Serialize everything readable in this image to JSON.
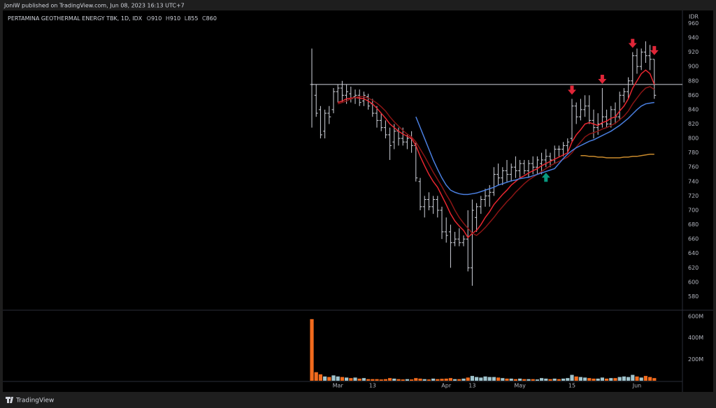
{
  "published": "JoniW published on TradingView.com, Jun 08, 2023 16:13 UTC+7",
  "brand": "TradingView",
  "chart_data": {
    "type": "ohlc",
    "title": "PERTAMINA GEOTHERMAL ENERGY TBK, 1D, IDX",
    "ohlc_labels": [
      "O",
      "H",
      "L",
      "C"
    ],
    "currency": "IDR",
    "categories": [
      null,
      null,
      null,
      null,
      null,
      null,
      "Mar",
      null,
      null,
      null,
      null,
      null,
      null,
      null,
      "13",
      null,
      null,
      null,
      null,
      null,
      null,
      null,
      null,
      null,
      null,
      null,
      null,
      null,
      null,
      null,
      null,
      "Apr",
      null,
      null,
      null,
      null,
      null,
      "13",
      null,
      null,
      null,
      null,
      null,
      null,
      null,
      null,
      null,
      null,
      "May",
      null,
      null,
      null,
      null,
      null,
      null,
      null,
      null,
      null,
      null,
      null,
      "15",
      null,
      null,
      null,
      null,
      null,
      null,
      null,
      null,
      null,
      null,
      null,
      null,
      null,
      null,
      "Jun",
      null,
      null,
      null,
      null
    ],
    "open": [
      875,
      860,
      840,
      810,
      835,
      840,
      865,
      870,
      860,
      862,
      858,
      860,
      852,
      858,
      848,
      835,
      825,
      815,
      805,
      795,
      810,
      800,
      795,
      800,
      790,
      740,
      705,
      715,
      705,
      715,
      700,
      670,
      670,
      655,
      660,
      655,
      660,
      620,
      690,
      705,
      715,
      720,
      725,
      750,
      745,
      755,
      750,
      760,
      755,
      765,
      755,
      765,
      760,
      765,
      770,
      775,
      770,
      785,
      785,
      790,
      800,
      845,
      830,
      840,
      845,
      825,
      815,
      820,
      830,
      820,
      840,
      830,
      860,
      865,
      880,
      915,
      900,
      920,
      915,
      910
    ],
    "high": [
      925,
      875,
      845,
      840,
      845,
      870,
      875,
      880,
      875,
      872,
      868,
      868,
      865,
      862,
      855,
      845,
      835,
      825,
      815,
      820,
      815,
      815,
      805,
      810,
      795,
      745,
      720,
      725,
      720,
      720,
      705,
      690,
      680,
      670,
      675,
      665,
      700,
      715,
      710,
      720,
      730,
      735,
      760,
      765,
      760,
      770,
      765,
      775,
      770,
      770,
      770,
      775,
      775,
      780,
      785,
      780,
      790,
      790,
      795,
      800,
      855,
      850,
      855,
      860,
      860,
      840,
      835,
      870,
      840,
      845,
      850,
      865,
      870,
      885,
      920,
      925,
      925,
      935,
      930,
      910
    ],
    "low": [
      815,
      830,
      800,
      800,
      820,
      835,
      850,
      850,
      848,
      850,
      848,
      845,
      845,
      840,
      830,
      815,
      810,
      800,
      770,
      785,
      790,
      790,
      785,
      780,
      740,
      700,
      690,
      700,
      695,
      690,
      660,
      655,
      620,
      650,
      650,
      650,
      615,
      595,
      670,
      695,
      705,
      705,
      720,
      735,
      735,
      740,
      740,
      745,
      745,
      750,
      745,
      750,
      750,
      750,
      760,
      760,
      765,
      775,
      775,
      780,
      795,
      820,
      825,
      830,
      820,
      800,
      805,
      815,
      815,
      815,
      820,
      825,
      850,
      855,
      875,
      890,
      895,
      905,
      895,
      855
    ],
    "close": [
      875,
      835,
      805,
      835,
      830,
      865,
      870,
      860,
      865,
      855,
      860,
      850,
      860,
      845,
      835,
      825,
      815,
      805,
      790,
      810,
      800,
      795,
      800,
      790,
      745,
      705,
      715,
      705,
      715,
      700,
      670,
      665,
      655,
      660,
      655,
      660,
      620,
      700,
      705,
      715,
      720,
      725,
      750,
      745,
      755,
      750,
      760,
      755,
      765,
      755,
      765,
      760,
      770,
      770,
      775,
      770,
      785,
      785,
      790,
      795,
      845,
      830,
      840,
      845,
      825,
      815,
      820,
      830,
      820,
      840,
      830,
      860,
      865,
      880,
      915,
      900,
      920,
      915,
      910,
      860
    ],
    "volume": [
      575,
      80,
      60,
      40,
      35,
      50,
      40,
      35,
      30,
      25,
      30,
      20,
      25,
      15,
      15,
      15,
      12,
      15,
      25,
      20,
      15,
      12,
      15,
      12,
      25,
      20,
      15,
      12,
      20,
      15,
      18,
      20,
      25,
      15,
      15,
      20,
      30,
      45,
      35,
      30,
      40,
      35,
      35,
      30,
      25,
      20,
      20,
      15,
      20,
      15,
      15,
      15,
      12,
      25,
      20,
      15,
      20,
      15,
      20,
      25,
      55,
      40,
      35,
      30,
      25,
      20,
      20,
      30,
      20,
      25,
      25,
      35,
      40,
      35,
      55,
      40,
      30,
      45,
      35,
      25
    ],
    "indicators": [
      {
        "color": "#e8262f",
        "values": [
          null,
          null,
          null,
          null,
          null,
          null,
          850,
          852,
          855,
          856,
          857,
          856,
          855,
          852,
          848,
          842,
          835,
          828,
          820,
          815,
          810,
          806,
          803,
          800,
          790,
          775,
          762,
          750,
          740,
          732,
          720,
          708,
          695,
          685,
          678,
          672,
          662,
          668,
          672,
          680,
          690,
          698,
          708,
          715,
          722,
          728,
          735,
          740,
          745,
          748,
          752,
          755,
          758,
          762,
          765,
          768,
          771,
          774,
          777,
          780,
          795,
          805,
          812,
          820,
          822,
          820,
          818,
          822,
          824,
          828,
          830,
          838,
          845,
          855,
          870,
          880,
          890,
          895,
          890,
          875
        ]
      },
      {
        "color": "#8a1515",
        "values": [
          null,
          null,
          null,
          null,
          null,
          null,
          848,
          850,
          852,
          855,
          857,
          858,
          858,
          856,
          853,
          849,
          844,
          838,
          830,
          823,
          817,
          811,
          806,
          802,
          795,
          785,
          775,
          764,
          753,
          743,
          733,
          722,
          712,
          700,
          690,
          682,
          675,
          668,
          665,
          670,
          676,
          683,
          690,
          698,
          705,
          712,
          718,
          725,
          731,
          737,
          742,
          746,
          750,
          754,
          758,
          762,
          765,
          768,
          771,
          774,
          780,
          788,
          795,
          802,
          806,
          808,
          810,
          813,
          815,
          818,
          821,
          826,
          831,
          838,
          848,
          856,
          864,
          870,
          872,
          868
        ]
      },
      {
        "color": "#4a7fe0",
        "values": [
          null,
          null,
          null,
          null,
          null,
          null,
          null,
          null,
          null,
          null,
          null,
          null,
          null,
          null,
          null,
          null,
          null,
          null,
          null,
          null,
          null,
          null,
          null,
          null,
          830,
          815,
          800,
          785,
          770,
          757,
          745,
          735,
          728,
          725,
          723,
          722,
          722,
          723,
          724,
          726,
          728,
          730,
          732,
          735,
          737,
          739,
          741,
          742,
          744,
          745,
          746,
          748,
          750,
          752,
          754,
          756,
          758,
          765,
          772,
          778,
          783,
          787,
          790,
          793,
          796,
          798,
          801,
          804,
          807,
          810,
          814,
          818,
          823,
          828,
          834,
          840,
          845,
          848,
          849,
          850
        ]
      },
      {
        "color": "#c98a2c",
        "values": [
          null,
          null,
          null,
          null,
          null,
          null,
          null,
          null,
          null,
          null,
          null,
          null,
          null,
          null,
          null,
          null,
          null,
          null,
          null,
          null,
          null,
          null,
          null,
          null,
          null,
          null,
          null,
          null,
          null,
          null,
          null,
          null,
          null,
          null,
          null,
          null,
          null,
          null,
          null,
          null,
          null,
          null,
          null,
          null,
          null,
          null,
          null,
          null,
          null,
          null,
          null,
          null,
          null,
          null,
          null,
          null,
          null,
          null,
          null,
          null,
          null,
          null,
          776,
          776,
          775,
          775,
          774,
          774,
          773,
          773,
          773,
          773,
          774,
          774,
          775,
          775,
          776,
          777,
          778,
          778
        ]
      }
    ],
    "signals": [
      null,
      null,
      null,
      null,
      null,
      null,
      null,
      null,
      null,
      null,
      null,
      null,
      null,
      null,
      null,
      null,
      null,
      null,
      null,
      null,
      null,
      null,
      null,
      null,
      null,
      null,
      null,
      null,
      null,
      null,
      null,
      null,
      null,
      null,
      null,
      null,
      null,
      null,
      null,
      null,
      null,
      null,
      null,
      null,
      null,
      null,
      null,
      null,
      null,
      null,
      null,
      null,
      null,
      null,
      "up",
      null,
      null,
      null,
      null,
      null,
      "down",
      null,
      null,
      null,
      null,
      null,
      null,
      "down",
      null,
      null,
      null,
      null,
      null,
      null,
      "down",
      null,
      null,
      null,
      null,
      "down"
    ],
    "signal_colors": {
      "up": "#089981",
      "down": "#e02638"
    },
    "horizontal_line": 875,
    "bar_color": "#d1d4dc",
    "up_volume_color": "#9fc3cc",
    "down_volume_color": "#f26b1d",
    "ylim": [
      562,
      975
    ],
    "yticks": [
      580,
      600,
      620,
      640,
      660,
      680,
      700,
      720,
      740,
      760,
      780,
      800,
      820,
      840,
      860,
      880,
      900,
      920,
      940,
      960
    ],
    "y2lim": [
      0,
      652
    ],
    "y2ticks": [
      {
        "value": 200,
        "label": "200M"
      },
      {
        "value": 400,
        "label": "400M"
      },
      {
        "value": 600,
        "label": "600M"
      }
    ]
  }
}
